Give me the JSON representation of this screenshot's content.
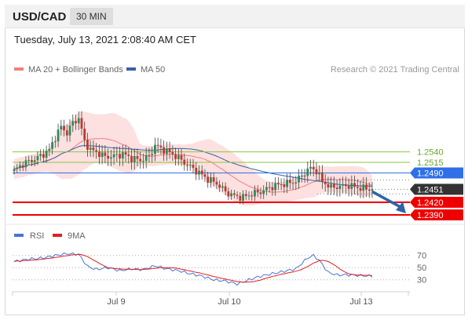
{
  "header": {
    "symbol": "USD/CAD",
    "timeframe": "30 MIN"
  },
  "timestamp": "Tuesday, July 13, 2021 2:08:40 AM CET",
  "legend": {
    "ma_bb": "MA 20 + Bollinger Bands",
    "ma50": "MA 50",
    "credit": "Research © 2021 Trading Central",
    "rsi": "RSI",
    "rsi_ma": "9MA"
  },
  "colors": {
    "bollinger_fill": "#fcd6d6",
    "ma20": "#f08080",
    "ma50": "#3a5fa8",
    "bull_candle": "#2e8b57",
    "bear_candle": "#c0392b",
    "support": "#ee0000",
    "pivot": "#2f6fe8",
    "resistance": "#8cc63f",
    "current": "#333333",
    "rsi": "#4a74d6",
    "rsi_ma": "#e02020",
    "arrow": "#2c64a8"
  },
  "chart_data": {
    "type": "candlestick",
    "x_labels": [
      "Jul 9",
      "Jul 10",
      "Jul 13"
    ],
    "ylim": [
      1.2375,
      1.2715
    ],
    "levels": [
      {
        "value": 1.254,
        "label": "1.2540",
        "kind": "resistance"
      },
      {
        "value": 1.2515,
        "label": "1.2515",
        "kind": "resistance"
      },
      {
        "value": 1.249,
        "label": "1.2490",
        "kind": "pivot"
      },
      {
        "value": 1.2451,
        "label": "1.2451",
        "kind": "current"
      },
      {
        "value": 1.242,
        "label": "1.2420",
        "kind": "support"
      },
      {
        "value": 1.239,
        "label": "1.2390",
        "kind": "support"
      }
    ],
    "price_path": [
      {
        "i": 0,
        "c": 1.2495
      },
      {
        "i": 3,
        "c": 1.2512
      },
      {
        "i": 6,
        "c": 1.252
      },
      {
        "i": 9,
        "c": 1.253
      },
      {
        "i": 12,
        "c": 1.2545
      },
      {
        "i": 14,
        "c": 1.2575
      },
      {
        "i": 16,
        "c": 1.26
      },
      {
        "i": 18,
        "c": 1.2585
      },
      {
        "i": 20,
        "c": 1.261
      },
      {
        "i": 22,
        "c": 1.262
      },
      {
        "i": 24,
        "c": 1.2565
      },
      {
        "i": 26,
        "c": 1.2545
      },
      {
        "i": 28,
        "c": 1.254
      },
      {
        "i": 31,
        "c": 1.2528
      },
      {
        "i": 34,
        "c": 1.253
      },
      {
        "i": 37,
        "c": 1.2535
      },
      {
        "i": 40,
        "c": 1.2525
      },
      {
        "i": 43,
        "c": 1.252
      },
      {
        "i": 46,
        "c": 1.253
      },
      {
        "i": 48,
        "c": 1.2555
      },
      {
        "i": 51,
        "c": 1.2545
      },
      {
        "i": 54,
        "c": 1.2535
      },
      {
        "i": 57,
        "c": 1.252
      },
      {
        "i": 60,
        "c": 1.2505
      },
      {
        "i": 63,
        "c": 1.249
      },
      {
        "i": 66,
        "c": 1.2475
      },
      {
        "i": 69,
        "c": 1.2465
      },
      {
        "i": 72,
        "c": 1.2445
      },
      {
        "i": 75,
        "c": 1.2435
      },
      {
        "i": 78,
        "c": 1.2432
      },
      {
        "i": 81,
        "c": 1.244
      },
      {
        "i": 84,
        "c": 1.2445
      },
      {
        "i": 87,
        "c": 1.2455
      },
      {
        "i": 90,
        "c": 1.2462
      },
      {
        "i": 93,
        "c": 1.2465
      },
      {
        "i": 96,
        "c": 1.247
      },
      {
        "i": 99,
        "c": 1.249
      },
      {
        "i": 101,
        "c": 1.2502
      },
      {
        "i": 103,
        "c": 1.2495
      },
      {
        "i": 105,
        "c": 1.247
      },
      {
        "i": 108,
        "c": 1.2455
      },
      {
        "i": 111,
        "c": 1.2458
      },
      {
        "i": 114,
        "c": 1.246
      },
      {
        "i": 117,
        "c": 1.2455
      },
      {
        "i": 120,
        "c": 1.2452
      },
      {
        "i": 122,
        "c": 1.2451
      }
    ],
    "rsi_levels": [
      70,
      50,
      30
    ],
    "rsi_ylim": [
      18,
      80
    ],
    "rsi_path": [
      {
        "i": 0,
        "v": 60
      },
      {
        "i": 5,
        "v": 64
      },
      {
        "i": 10,
        "v": 66
      },
      {
        "i": 14,
        "v": 70
      },
      {
        "i": 18,
        "v": 73
      },
      {
        "i": 22,
        "v": 72
      },
      {
        "i": 25,
        "v": 52
      },
      {
        "i": 28,
        "v": 47
      },
      {
        "i": 32,
        "v": 50
      },
      {
        "i": 36,
        "v": 45
      },
      {
        "i": 40,
        "v": 48
      },
      {
        "i": 44,
        "v": 47
      },
      {
        "i": 48,
        "v": 53
      },
      {
        "i": 52,
        "v": 48
      },
      {
        "i": 56,
        "v": 45
      },
      {
        "i": 60,
        "v": 40
      },
      {
        "i": 64,
        "v": 36
      },
      {
        "i": 68,
        "v": 30
      },
      {
        "i": 72,
        "v": 28
      },
      {
        "i": 76,
        "v": 23
      },
      {
        "i": 80,
        "v": 30
      },
      {
        "i": 84,
        "v": 36
      },
      {
        "i": 88,
        "v": 40
      },
      {
        "i": 92,
        "v": 44
      },
      {
        "i": 96,
        "v": 48
      },
      {
        "i": 100,
        "v": 66
      },
      {
        "i": 102,
        "v": 70
      },
      {
        "i": 104,
        "v": 62
      },
      {
        "i": 107,
        "v": 42
      },
      {
        "i": 110,
        "v": 38
      },
      {
        "i": 114,
        "v": 38
      },
      {
        "i": 118,
        "v": 37
      },
      {
        "i": 122,
        "v": 36
      }
    ]
  }
}
